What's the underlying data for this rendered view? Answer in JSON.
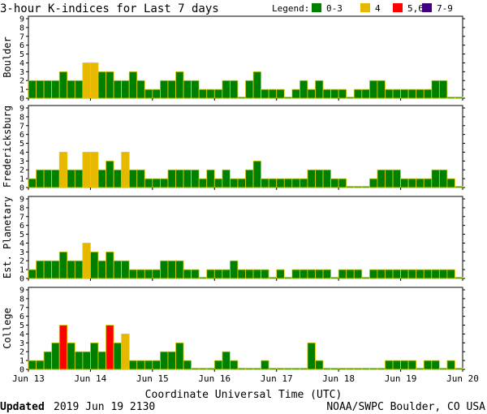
{
  "chart_data": {
    "type": "bar",
    "title": "3-hour K-indices for Last 7 days",
    "legend_label": "Legend:",
    "legend": [
      {
        "label": "0-3",
        "color": "#008000"
      },
      {
        "label": "4",
        "color": "#e6b800"
      },
      {
        "label": "5,6",
        "color": "#ff0000"
      },
      {
        "label": "7-9",
        "color": "#400080"
      }
    ],
    "ylim": [
      0,
      9
    ],
    "yticks": [
      "0",
      "1",
      "2",
      "3",
      "4",
      "5",
      "6",
      "7",
      "8",
      "9"
    ],
    "x_tick_labels": [
      "Jun 13",
      "Jun 14",
      "Jun 15",
      "Jun 16",
      "Jun 17",
      "Jun 18",
      "Jun 19",
      "Jun 20"
    ],
    "xlabel": "Coordinate Universal Time (UTC)",
    "grid": false,
    "series": [
      {
        "name": "Boulder",
        "values": [
          2,
          2,
          2,
          2,
          3,
          2,
          2,
          4,
          4,
          3,
          3,
          2,
          2,
          3,
          2,
          1,
          1,
          2,
          2,
          3,
          2,
          2,
          1,
          1,
          1,
          2,
          2,
          0,
          2,
          3,
          1,
          1,
          1,
          0,
          1,
          2,
          1,
          2,
          1,
          1,
          1,
          0,
          1,
          1,
          2,
          2,
          1,
          1,
          1,
          1,
          1,
          1,
          2,
          2,
          0,
          0
        ]
      },
      {
        "name": "Fredericksburg",
        "values": [
          1,
          2,
          2,
          2,
          4,
          2,
          2,
          4,
          4,
          2,
          3,
          2,
          4,
          2,
          2,
          1,
          1,
          1,
          2,
          2,
          2,
          2,
          1,
          2,
          1,
          2,
          1,
          1,
          2,
          3,
          1,
          1,
          1,
          1,
          1,
          1,
          2,
          2,
          2,
          1,
          1,
          0,
          0,
          0,
          1,
          2,
          2,
          2,
          1,
          1,
          1,
          1,
          2,
          2,
          1,
          0
        ]
      },
      {
        "name": "Est. Planetary",
        "values": [
          1,
          2,
          2,
          2,
          3,
          2,
          2,
          4,
          3,
          2,
          3,
          2,
          2,
          1,
          1,
          1,
          1,
          2,
          2,
          2,
          1,
          1,
          0,
          1,
          1,
          1,
          2,
          1,
          1,
          1,
          1,
          0,
          1,
          0,
          1,
          1,
          1,
          1,
          1,
          0,
          1,
          1,
          1,
          0,
          1,
          1,
          1,
          1,
          1,
          1,
          1,
          1,
          1,
          1,
          1,
          0
        ]
      },
      {
        "name": "College",
        "values": [
          1,
          1,
          2,
          3,
          5,
          3,
          2,
          2,
          3,
          2,
          5,
          3,
          4,
          1,
          1,
          1,
          1,
          2,
          2,
          3,
          1,
          0,
          0,
          0,
          1,
          2,
          1,
          0,
          0,
          0,
          1,
          0,
          0,
          0,
          0,
          0,
          3,
          1,
          0,
          0,
          0,
          0,
          0,
          0,
          0,
          0,
          1,
          1,
          1,
          1,
          0,
          1,
          1,
          0,
          1,
          0
        ]
      }
    ]
  },
  "footer": {
    "updated_label": "Updated",
    "updated_value": "2019 Jun 19 2130",
    "credit": "NOAA/SWPC Boulder, CO USA"
  }
}
